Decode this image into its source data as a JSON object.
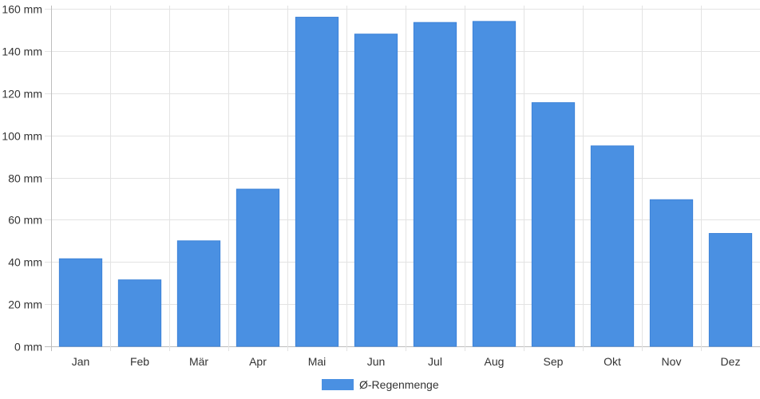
{
  "chart_data": {
    "type": "bar",
    "categories": [
      "Jan",
      "Feb",
      "Mär",
      "Apr",
      "Mai",
      "Jun",
      "Jul",
      "Aug",
      "Sep",
      "Okt",
      "Nov",
      "Dez"
    ],
    "series": [
      {
        "name": "Ø-Regenmenge",
        "values": [
          41.5,
          31.5,
          50,
          74.5,
          156,
          148,
          153.5,
          154,
          115.5,
          95,
          69.5,
          53.5
        ],
        "color": "#4a90e2"
      }
    ],
    "y_ticks": [
      "0 mm",
      "20 mm",
      "40 mm",
      "60 mm",
      "80 mm",
      "100 mm",
      "120 mm",
      "140 mm",
      "160 mm"
    ],
    "ylim": [
      0,
      160
    ],
    "y_unit": "mm",
    "grid": true,
    "legend_position": "bottom"
  }
}
